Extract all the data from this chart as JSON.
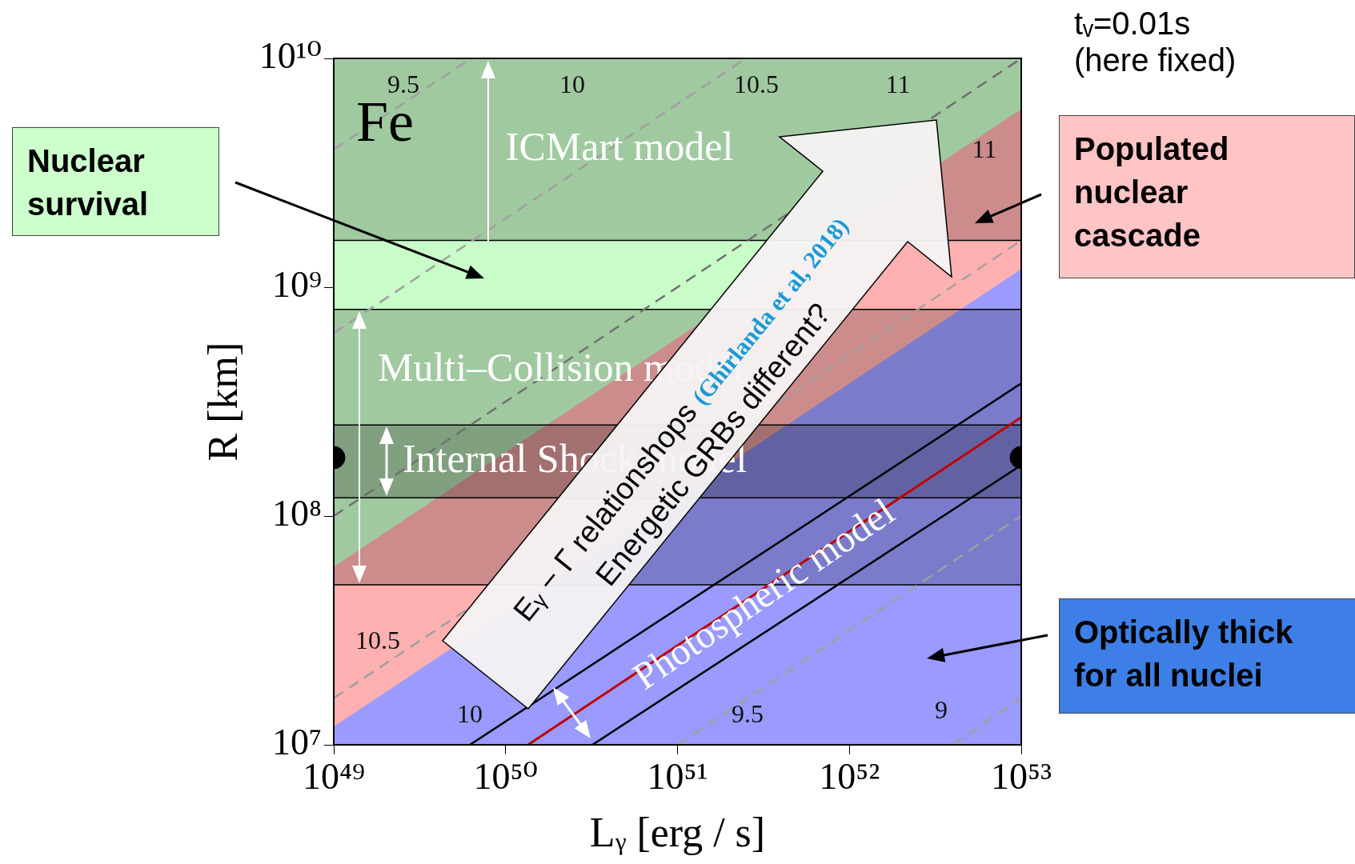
{
  "chart_data": {
    "type": "line",
    "log": "xy",
    "xlabel": "Lᵧ [erg / s]",
    "ylabel": "R [km]",
    "xlim": [
      1e+49,
      1e+53
    ],
    "ylim": [
      10000000.0,
      10000000000.0
    ],
    "xticks": [
      {
        "value": 1e+49,
        "label": "10⁴⁹"
      },
      {
        "value": 1e+50,
        "label": "10⁵⁰"
      },
      {
        "value": 1e+51,
        "label": "10⁵¹"
      },
      {
        "value": 1e+52,
        "label": "10⁵²"
      },
      {
        "value": 1e+53,
        "label": "10⁵³"
      }
    ],
    "yticks": [
      {
        "value": 10000000.0,
        "label": "10⁷"
      },
      {
        "value": 100000000.0,
        "label": "10⁸"
      },
      {
        "value": 1000000000.0,
        "label": "10⁹"
      },
      {
        "value": 10000000000.0,
        "label": "10¹⁰"
      }
    ],
    "grid": false,
    "legend": false,
    "marker": "none",
    "series": [
      {
        "type": "area",
        "color": "#c8fcc8",
        "x": [
          1e+49,
          1e+53
        ],
        "values": [
          10000000000.0,
          10000000000.0
        ]
      },
      {
        "type": "area",
        "color": "#ffb0b0",
        "x": [
          1e+49,
          1e+53
        ],
        "values": [
          60000000.0,
          6000000000.0
        ]
      },
      {
        "type": "area",
        "color": "#9a9aff",
        "x": [
          1e+49,
          1e+53
        ],
        "values": [
          12000000.0,
          1200000000.0
        ]
      },
      {
        "type": "line",
        "color": "#a0a0a0",
        "line_style": "dashed",
        "x": [
          1e+49,
          6.3e+49
        ],
        "values": [
          4000000000.0,
          10000000000.0
        ]
      },
      {
        "type": "line",
        "color": "#a0a0a0",
        "line_style": "dashed",
        "x": [
          1e+49,
          2.5e+51
        ],
        "values": [
          630000000.0,
          10000000000.0
        ]
      },
      {
        "type": "line",
        "color": "#707070",
        "line_style": "dashed",
        "x": [
          1e+49,
          1e+53
        ],
        "values": [
          100000000.0,
          10000000000.0
        ]
      },
      {
        "type": "line",
        "color": "#a0a0a0",
        "line_style": "dashed",
        "x": [
          1e+49,
          1e+53
        ],
        "values": [
          16000000.0,
          1600000000.0
        ]
      },
      {
        "type": "line",
        "color": "#a0a0a0",
        "line_style": "dashed",
        "x": [
          1e+51,
          1e+53
        ],
        "values": [
          10000000.0,
          100000000.0
        ]
      },
      {
        "type": "line",
        "color": "#a0a0a0",
        "line_style": "dashed",
        "x": [
          4e+52,
          1e+53
        ],
        "values": [
          10000000.0,
          16000000.0
        ]
      },
      {
        "type": "line",
        "color": "#000000",
        "line_style": "solid",
        "x": [
          6.2e+49,
          1e+53
        ],
        "values": [
          10000000.0,
          380000000.0
        ]
      },
      {
        "type": "line",
        "color": "#000000",
        "line_style": "solid",
        "x": [
          3.2e+50,
          1e+53
        ],
        "values": [
          10000000.0,
          167000000.0
        ]
      },
      {
        "type": "line",
        "color": "#c00000",
        "line_style": "solid",
        "x": [
          1.35e+50,
          1e+53
        ],
        "values": [
          10000000.0,
          270000000.0
        ]
      },
      {
        "type": "scatter",
        "color": "#000000",
        "marker": "circle",
        "x": [
          1e+49,
          1e+53
        ],
        "values": [
          180000000.0,
          180000000.0
        ]
      }
    ],
    "bands": [
      {
        "axis": "y",
        "from": 1600000000.0,
        "to": 10000000000.0,
        "label": "ICMart model",
        "color": "#000000"
      },
      {
        "axis": "y",
        "from": 50000000.0,
        "to": 800000000.0,
        "label": "Multi–Collision model",
        "color": "#000000"
      },
      {
        "axis": "y",
        "from": 120000000.0,
        "to": 250000000.0,
        "label": "Internal Shock model",
        "color": "#000000"
      }
    ],
    "annotations": [
      "Fe",
      "Nuclear survival",
      "Populated nuclear cascade",
      "Optically thick for all nuclei",
      "tᵥ=0.01s (here fixed)",
      "Eᵧ − Γ relationshops",
      "(Ghirlanda et al, 2018)",
      "Energetic GRBs different?",
      "Photospheric model",
      "9.5",
      "10",
      "10.5",
      "11",
      "11",
      "10.5",
      "10",
      "9.5",
      "9"
    ]
  }
}
